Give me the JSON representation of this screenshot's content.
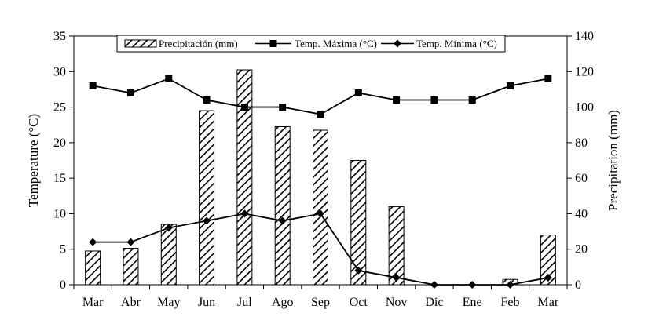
{
  "chart_data": {
    "type": "bar+line",
    "categories": [
      "Mar",
      "Abr",
      "May",
      "Jun",
      "Jul",
      "Ago",
      "Sep",
      "Oct",
      "Nov",
      "Dic",
      "Ene",
      "Feb",
      "Mar"
    ],
    "left_axis": {
      "label": "Temperature (°C)",
      "lim": [
        0,
        35
      ],
      "ticks": [
        0,
        5,
        10,
        15,
        20,
        25,
        30,
        35
      ]
    },
    "right_axis": {
      "label": "Precipitation (mm)",
      "lim": [
        0,
        140
      ],
      "ticks": [
        0,
        20,
        40,
        60,
        80,
        100,
        120,
        140
      ]
    },
    "legend_position": "top",
    "series": [
      {
        "name": "Precipitación (mm)",
        "type": "bar",
        "axis": "right",
        "pattern": "diagonal-hatch",
        "values": [
          19,
          20.5,
          34,
          98,
          121,
          89,
          87,
          70,
          44,
          0,
          0,
          3,
          28
        ]
      },
      {
        "name": "Temp. Máxima (°C)",
        "type": "line",
        "axis": "left",
        "marker": "square",
        "values": [
          28,
          27,
          29,
          26,
          25,
          25,
          24,
          27,
          26,
          26,
          26,
          28,
          29
        ]
      },
      {
        "name": "Temp. Mínima (°C)",
        "type": "line",
        "axis": "left",
        "marker": "diamond",
        "values": [
          6,
          6,
          8,
          9,
          10,
          9,
          10,
          2,
          1,
          0,
          0,
          0,
          1
        ]
      }
    ],
    "colors": {
      "line": "#000000",
      "bar_fill": "#ffffff",
      "hatch": "#000000"
    }
  }
}
